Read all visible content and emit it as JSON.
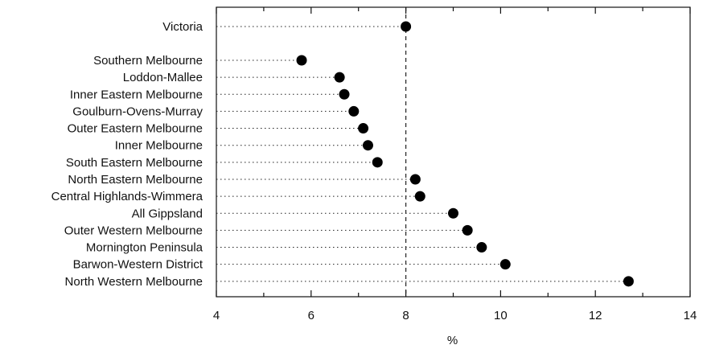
{
  "chart_data": {
    "type": "scatter",
    "orientation": "horizontal-dot-plot",
    "title": "",
    "xlabel": "%",
    "ylabel": "",
    "xlim": [
      4,
      14
    ],
    "xticks": [
      4,
      6,
      8,
      10,
      12,
      14
    ],
    "xtick_labels": [
      "4",
      "6",
      "8",
      "10",
      "12",
      "14"
    ],
    "reference_line_x": 8.0,
    "grid": false,
    "legend": "none",
    "marker_color": "#000000",
    "categories": [
      "Victoria",
      "Southern Melbourne",
      "Loddon-Mallee",
      "Inner Eastern Melbourne",
      "Goulburn-Ovens-Murray",
      "Outer Eastern Melbourne",
      "Inner Melbourne",
      "South Eastern Melbourne",
      "North Eastern Melbourne",
      "Central Highlands-Wimmera",
      "All Gippsland",
      "Outer Western Melbourne",
      "Mornington Peninsula",
      "Barwon-Western District",
      "North Western Melbourne"
    ],
    "values": [
      8.0,
      5.8,
      6.6,
      6.7,
      6.9,
      7.1,
      7.2,
      7.4,
      8.2,
      8.3,
      9.0,
      9.3,
      9.6,
      10.1,
      12.7
    ]
  }
}
